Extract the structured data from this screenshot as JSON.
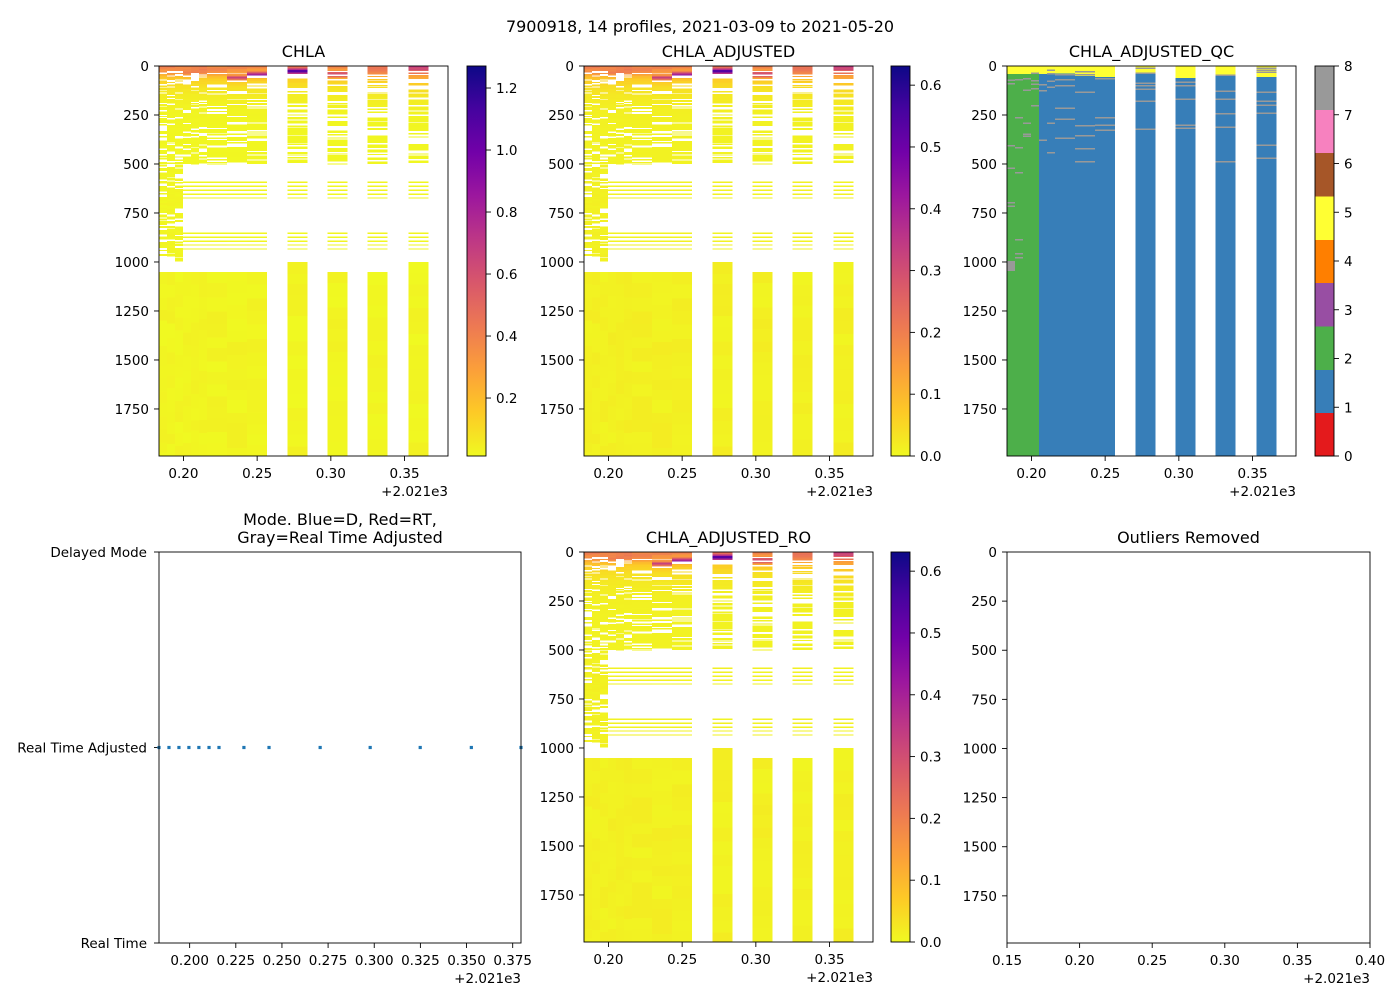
{
  "figure": {
    "suptitle": "7900918, 14 profiles, 2021-03-09 to 2021-05-20"
  },
  "colormaps": {
    "plasma": [
      "#0d0887",
      "#46039f",
      "#7201a8",
      "#9c179e",
      "#bd3786",
      "#d8576b",
      "#ed7953",
      "#fb9f3a",
      "#fdca26",
      "#f0f921"
    ]
  },
  "chart_data": [
    {
      "id": "chla",
      "type": "heatmap",
      "title": "CHLA",
      "xlabel": "",
      "ylabel": "",
      "xlim": [
        0.1834,
        0.3795
      ],
      "ylim": [
        1990,
        0
      ],
      "xticks": [
        0.2,
        0.25,
        0.3,
        0.35
      ],
      "xtick_labels": [
        "0.20",
        "0.25",
        "0.30",
        "0.35"
      ],
      "x_offset_label": "+2.021e3",
      "yticks": [
        0,
        250,
        500,
        750,
        1000,
        1250,
        1500,
        1750
      ],
      "ytick_labels": [
        "0",
        "250",
        "500",
        "750",
        "1000",
        "1250",
        "1500",
        "1750"
      ],
      "colorbar": {
        "cmap": "plasma_r",
        "vmin": 0.013,
        "vmax": 1.271,
        "ticks": [
          0.2,
          0.4,
          0.6,
          0.8,
          1.0,
          1.2
        ],
        "tick_labels": [
          "0.2",
          "0.4",
          "0.6",
          "0.8",
          "1.0",
          "1.2"
        ]
      },
      "deep_value": 0.02,
      "adjustment_factor": 1.0,
      "profiles": [
        {
          "x": 0.1834,
          "surface": 0.4,
          "peak": 0.08,
          "peak_depth": 30,
          "peak_width": 20,
          "upper_to": 500,
          "dense_to": 990,
          "deep_start": 1050,
          "gap": 0.25
        },
        {
          "x": 0.1888,
          "surface": 0.42,
          "peak": 0.1,
          "peak_depth": 30,
          "peak_width": 20,
          "upper_to": 500,
          "dense_to": 990,
          "deep_start": 1050,
          "gap": 0.25
        },
        {
          "x": 0.1942,
          "surface": 0.38,
          "peak": 0.12,
          "peak_depth": 25,
          "peak_width": 20,
          "upper_to": 500,
          "dense_to": 990,
          "deep_start": 1050,
          "gap": 0.25
        },
        {
          "x": 0.1996,
          "surface": 0.4,
          "peak": 0.15,
          "peak_depth": 35,
          "peak_width": 20,
          "upper_to": 500,
          "dense_to": 0,
          "deep_start": 1050,
          "gap": 0.25
        },
        {
          "x": 0.205,
          "surface": 0.38,
          "peak": 0.18,
          "peak_depth": 30,
          "peak_width": 20,
          "upper_to": 500,
          "dense_to": 0,
          "deep_start": 1050,
          "gap": 0.25
        },
        {
          "x": 0.2105,
          "surface": 0.4,
          "peak": 0.15,
          "peak_depth": 30,
          "peak_width": 20,
          "upper_to": 500,
          "dense_to": 0,
          "deep_start": 1050,
          "gap": 0.25
        },
        {
          "x": 0.2159,
          "surface": 0.38,
          "peak": 0.12,
          "peak_depth": 30,
          "peak_width": 20,
          "upper_to": 500,
          "dense_to": 0,
          "deep_start": 1050,
          "gap": 0.25
        },
        {
          "x": 0.2294,
          "surface": 0.45,
          "peak": 0.45,
          "peak_depth": 60,
          "peak_width": 12,
          "upper_to": 500,
          "dense_to": 0,
          "deep_start": 1050,
          "gap": 0.25
        },
        {
          "x": 0.243,
          "surface": 0.42,
          "peak": 0.7,
          "peak_depth": 45,
          "peak_width": 12,
          "upper_to": 500,
          "dense_to": 0,
          "deep_start": 1050,
          "gap": 0.25
        },
        {
          "x": 0.2707,
          "surface": 0.4,
          "peak": 0.85,
          "peak_depth": 28,
          "peak_width": 15,
          "upper_to": 500,
          "dense_to": 0,
          "deep_start": 1000,
          "gap": 0.35
        },
        {
          "x": 0.2978,
          "surface": 0.4,
          "peak": 0.45,
          "peak_depth": 45,
          "peak_width": 15,
          "upper_to": 500,
          "dense_to": 0,
          "deep_start": 1050,
          "gap": 0.35
        },
        {
          "x": 0.3249,
          "surface": 0.48,
          "peak": 0.1,
          "peak_depth": 30,
          "peak_width": 20,
          "upper_to": 500,
          "dense_to": 0,
          "deep_start": 1050,
          "gap": 0.35
        },
        {
          "x": 0.3526,
          "surface": 0.62,
          "peak": 0.15,
          "peak_depth": 20,
          "peak_width": 20,
          "upper_to": 500,
          "dense_to": 0,
          "deep_start": 1000,
          "gap": 0.35
        },
        {
          "x": 0.3795,
          "surface": 0.45,
          "peak": 0.1,
          "peak_depth": 30,
          "peak_width": 20,
          "upper_to": 500,
          "dense_to": 0,
          "deep_start": 1050,
          "gap": 0.35
        }
      ],
      "mid_depth_sample_depths": [
        590,
        610,
        630,
        650,
        670,
        850,
        870,
        890,
        910,
        930
      ]
    },
    {
      "id": "chla_adjusted",
      "type": "heatmap",
      "title": "CHLA_ADJUSTED",
      "xlim": [
        0.1834,
        0.3795
      ],
      "ylim": [
        1990,
        0
      ],
      "xticks": [
        0.2,
        0.25,
        0.3,
        0.35
      ],
      "xtick_labels": [
        "0.20",
        "0.25",
        "0.30",
        "0.35"
      ],
      "x_offset_label": "+2.021e3",
      "yticks": [
        0,
        250,
        500,
        750,
        1000,
        1250,
        1500,
        1750
      ],
      "ytick_labels": [
        "0",
        "250",
        "500",
        "750",
        "1000",
        "1250",
        "1500",
        "1750"
      ],
      "colorbar": {
        "cmap": "plasma_r",
        "vmin": 0.0,
        "vmax": 0.631,
        "ticks": [
          0.0,
          0.1,
          0.2,
          0.3,
          0.4,
          0.5,
          0.6
        ],
        "tick_labels": [
          "0.0",
          "0.1",
          "0.2",
          "0.3",
          "0.4",
          "0.5",
          "0.6"
        ]
      },
      "derived_from": "CHLA",
      "adjustment_factor": 0.5
    },
    {
      "id": "chla_adjusted_qc",
      "type": "heatmap",
      "title": "CHLA_ADJUSTED_QC",
      "xlim": [
        0.1834,
        0.3795
      ],
      "ylim": [
        1990,
        0
      ],
      "xticks": [
        0.2,
        0.25,
        0.3,
        0.35
      ],
      "xtick_labels": [
        "0.20",
        "0.25",
        "0.30",
        "0.35"
      ],
      "x_offset_label": "+2.021e3",
      "yticks": [
        0,
        250,
        500,
        750,
        1000,
        1250,
        1500,
        1750
      ],
      "ytick_labels": [
        "0",
        "250",
        "500",
        "750",
        "1000",
        "1250",
        "1500",
        "1750"
      ],
      "colorbar": {
        "cmap": "Set1",
        "vmin": 0,
        "vmax": 8,
        "ticks": [
          0,
          1,
          2,
          3,
          4,
          5,
          6,
          7,
          8
        ],
        "tick_labels": [
          "0",
          "1",
          "2",
          "3",
          "4",
          "5",
          "6",
          "7",
          "8"
        ],
        "colors": [
          "#e41a1c",
          "#377eb8",
          "#4daf4a",
          "#984ea3",
          "#ff7f00",
          "#ffff33",
          "#a65628",
          "#f781bf",
          "#999999"
        ]
      },
      "profiles": [
        {
          "x": 0.1834,
          "flag": 2,
          "flag5_to": 40,
          "flag8_depths": [
            68,
            88,
            403,
            518,
            694,
            713
          ],
          "flag8_blocks": [
            [
              995,
              1046
            ]
          ]
        },
        {
          "x": 0.1888,
          "flag": 2,
          "flag5_to": 40,
          "flag8_depths": [
            66,
            260,
            413,
            541,
            883,
            954,
            974
          ],
          "flag8_blocks": []
        },
        {
          "x": 0.1942,
          "flag": 2,
          "flag5_to": 40,
          "flag8_depths": [
            60,
            121,
            289,
            345,
            355
          ],
          "flag8_blocks": []
        },
        {
          "x": 0.1996,
          "flag": 2,
          "flag5_to": 40,
          "flag8_depths": [
            32,
            71,
            90,
            111,
            199
          ],
          "flag8_blocks": []
        },
        {
          "x": 0.205,
          "flag": 1,
          "flag5_to": 40,
          "flag8_depths": [
            93,
            122,
            374
          ],
          "flag8_blocks": []
        },
        {
          "x": 0.2105,
          "flag": 1,
          "flag5_to": 40,
          "flag8_depths": [
            17,
            36,
            75,
            104,
            289,
            440
          ],
          "flag8_blocks": []
        },
        {
          "x": 0.2159,
          "flag": 1,
          "flag5_to": 38,
          "flag8_depths": [
            41,
            66,
            98,
            213,
            269,
            364
          ],
          "flag8_blocks": []
        },
        {
          "x": 0.2294,
          "flag": 1,
          "flag5_to": 50,
          "flag8_depths": [
            26,
            41,
            131,
            301,
            352,
            418,
            486
          ],
          "flag8_blocks": []
        },
        {
          "x": 0.243,
          "flag": 1,
          "flag5_to": 55,
          "flag8_depths": [
            60,
            259,
            298,
            323
          ],
          "flag8_blocks": []
        },
        {
          "x": 0.2707,
          "flag": 1,
          "flag5_to": 40,
          "flag8_depths": [
            7,
            32,
            83,
            98,
            114,
            177,
            318
          ],
          "flag8_blocks": []
        },
        {
          "x": 0.2978,
          "flag": 1,
          "flag5_to": 60,
          "flag8_depths": [
            78,
            97,
            165,
            298,
            313
          ],
          "flag8_blocks": []
        },
        {
          "x": 0.3249,
          "flag": 1,
          "flag5_to": 50,
          "flag8_depths": [
            44,
            124,
            167,
            241,
            308,
            485
          ],
          "flag8_blocks": []
        },
        {
          "x": 0.3526,
          "flag": 1,
          "flag5_to": 55,
          "flag8_depths": [
            7,
            19,
            29,
            131,
            177,
            197,
            236,
            400,
            466
          ],
          "flag8_blocks": []
        },
        {
          "x": 0.3795,
          "flag": 1,
          "flag5_to": 50,
          "flag8_depths": [],
          "flag8_blocks": []
        }
      ]
    },
    {
      "id": "mode",
      "type": "scatter",
      "title_lines": [
        "Mode. Blue=D, Red=RT,",
        "Gray=Real Time Adjusted"
      ],
      "xlim": [
        0.1834,
        0.3795
      ],
      "xticks": [
        0.2,
        0.225,
        0.25,
        0.275,
        0.3,
        0.325,
        0.35,
        0.375
      ],
      "xtick_labels": [
        "0.200",
        "0.225",
        "0.250",
        "0.275",
        "0.300",
        "0.325",
        "0.350",
        "0.375"
      ],
      "x_offset_label": "+2.021e3",
      "y_categories": [
        "Real Time",
        "Real Time Adjusted",
        "Delayed Mode"
      ],
      "marker_color": "#1f77b4",
      "x": [
        0.1834,
        0.1888,
        0.1942,
        0.1996,
        0.205,
        0.2105,
        0.2159,
        0.2294,
        0.243,
        0.2707,
        0.2978,
        0.3249,
        0.3526,
        0.3795
      ],
      "y": [
        "Real Time Adjusted",
        "Real Time Adjusted",
        "Real Time Adjusted",
        "Real Time Adjusted",
        "Real Time Adjusted",
        "Real Time Adjusted",
        "Real Time Adjusted",
        "Real Time Adjusted",
        "Real Time Adjusted",
        "Real Time Adjusted",
        "Real Time Adjusted",
        "Real Time Adjusted",
        "Real Time Adjusted",
        "Real Time Adjusted"
      ]
    },
    {
      "id": "chla_adjusted_ro",
      "type": "heatmap",
      "title": "CHLA_ADJUSTED_RO",
      "xlim": [
        0.1834,
        0.3795
      ],
      "ylim": [
        1990,
        0
      ],
      "xticks": [
        0.2,
        0.25,
        0.3,
        0.35
      ],
      "xtick_labels": [
        "0.20",
        "0.25",
        "0.30",
        "0.35"
      ],
      "x_offset_label": "+2.021e3",
      "yticks": [
        0,
        250,
        500,
        750,
        1000,
        1250,
        1500,
        1750
      ],
      "ytick_labels": [
        "0",
        "250",
        "500",
        "750",
        "1000",
        "1250",
        "1500",
        "1750"
      ],
      "colorbar": {
        "cmap": "plasma_r",
        "vmin": 0.0,
        "vmax": 0.631,
        "ticks": [
          0.0,
          0.1,
          0.2,
          0.3,
          0.4,
          0.5,
          0.6
        ],
        "tick_labels": [
          "0.0",
          "0.1",
          "0.2",
          "0.3",
          "0.4",
          "0.5",
          "0.6"
        ]
      },
      "derived_from": "CHLA",
      "adjustment_factor": 0.5
    },
    {
      "id": "outliers_removed",
      "type": "scatter",
      "title": "Outliers Removed",
      "xlim": [
        0.15,
        0.4
      ],
      "ylim": [
        1990,
        0
      ],
      "xticks": [
        0.15,
        0.2,
        0.25,
        0.3,
        0.35,
        0.4
      ],
      "xtick_labels": [
        "0.15",
        "0.20",
        "0.25",
        "0.30",
        "0.35",
        "0.40"
      ],
      "x_offset_label": "+2.021e3",
      "yticks": [
        0,
        250,
        500,
        750,
        1000,
        1250,
        1500,
        1750
      ],
      "ytick_labels": [
        "0",
        "250",
        "500",
        "750",
        "1000",
        "1250",
        "1500",
        "1750"
      ],
      "x": [],
      "y": []
    }
  ]
}
